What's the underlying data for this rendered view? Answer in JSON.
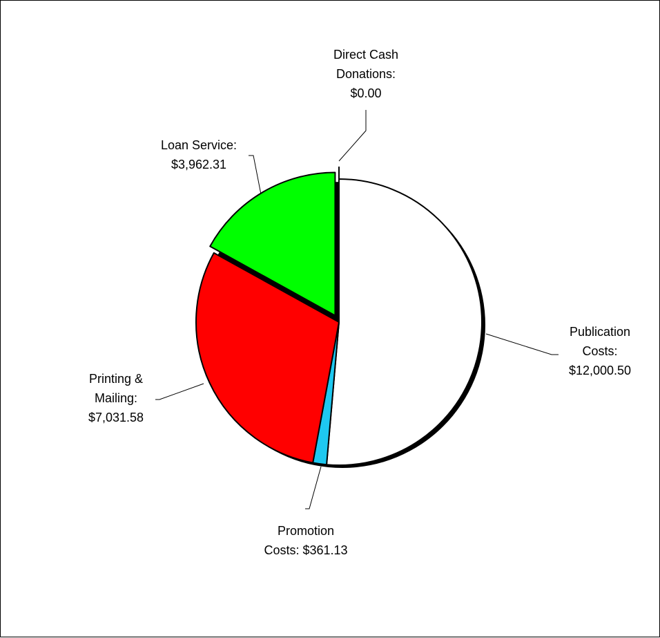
{
  "chart_data": {
    "type": "pie",
    "title": "",
    "slices": [
      {
        "category": "Publication Costs",
        "value": 12000.5,
        "color": "#ffffff",
        "label_lines": [
          "Publication",
          "Costs:",
          "$12,000.50"
        ]
      },
      {
        "category": "Promotion Costs",
        "value": 361.13,
        "color": "#1ec8f0",
        "label_lines": [
          "Promotion",
          "Costs: $361.13"
        ]
      },
      {
        "category": "Printing & Mailing",
        "value": 7031.58,
        "color": "#ff0000",
        "label_lines": [
          "Printing &",
          "Mailing:",
          "$7,031.58"
        ]
      },
      {
        "category": "Loan Service",
        "value": 3962.31,
        "color": "#00ff00",
        "label_lines": [
          "Loan Service:",
          "$3,962.31"
        ]
      },
      {
        "category": "Direct Cash Donations",
        "value": 0.0,
        "color": "#ffffff",
        "label_lines": [
          "Direct Cash",
          "Donations:",
          "$0.00"
        ]
      }
    ],
    "exploded": [
      "Loan Service"
    ],
    "legend": "none"
  }
}
